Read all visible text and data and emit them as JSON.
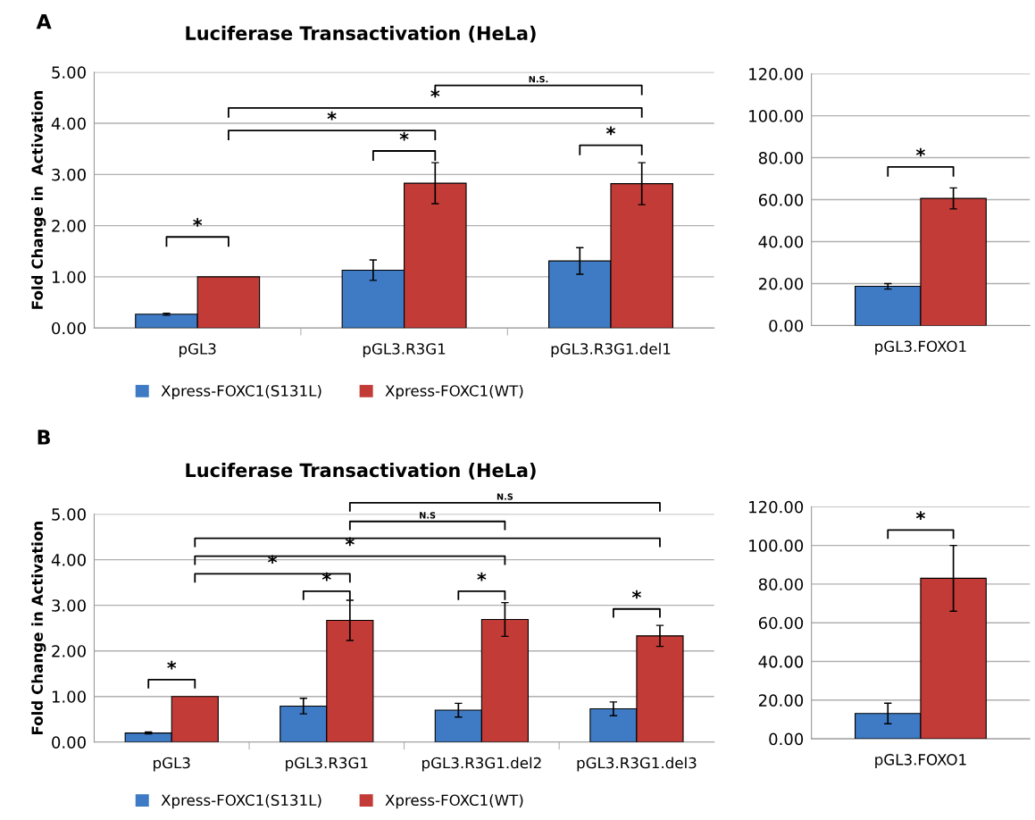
{
  "chart_data": [
    {
      "type": "bar",
      "title": "Luciferase Transactivation (HeLa)",
      "ylabel": "Fold Change in  Activation",
      "categories": [
        "pGL3",
        "pGL3.R3G1",
        "pGL3.R3G1.del1"
      ],
      "series": [
        {
          "name": "Xpress-FOXC1(S131L)",
          "color": "#3e7bc4",
          "values": [
            0.27,
            1.13,
            1.31
          ],
          "errors": [
            0.02,
            0.2,
            0.26
          ]
        },
        {
          "name": "Xpress-FOXC1(WT)",
          "color": "#c33b36",
          "values": [
            1.0,
            2.83,
            2.82
          ],
          "errors": [
            null,
            0.4,
            0.41
          ]
        }
      ],
      "ylim": [
        0,
        5
      ],
      "yticks": [
        {
          "value": 0,
          "label": "0.00"
        },
        {
          "value": 1,
          "label": "1.00"
        },
        {
          "value": 2,
          "label": "2.00"
        },
        {
          "value": 3,
          "label": "3.00"
        },
        {
          "value": 4,
          "label": "4.00"
        },
        {
          "value": 5,
          "label": "5.00"
        }
      ],
      "grid": "y",
      "legend": "bottom",
      "annotations": [
        "A",
        "*",
        "*",
        "*",
        "*",
        "*",
        "N.S."
      ]
    },
    {
      "type": "bar",
      "categories": [
        "pGL3.FOXO1"
      ],
      "series": [
        {
          "color": "#3e7bc4",
          "values": [
            18.7
          ],
          "errors": [
            1.3
          ]
        },
        {
          "color": "#c33b36",
          "values": [
            60.6
          ],
          "errors": [
            5
          ]
        }
      ],
      "ylim": [
        0,
        120
      ],
      "yticks": [
        {
          "value": 0,
          "label": "0.00"
        },
        {
          "value": 20,
          "label": "20.00"
        },
        {
          "value": 40,
          "label": "40.00"
        },
        {
          "value": 60,
          "label": "60.00"
        },
        {
          "value": 80,
          "label": "80.00"
        },
        {
          "value": 100,
          "label": "100.00"
        },
        {
          "value": 120,
          "label": "120.00"
        }
      ],
      "grid": "y",
      "annotations": [
        "*"
      ]
    },
    {
      "type": "bar",
      "title": "Luciferase Transactivation (HeLa)",
      "ylabel": "Fold Change in Activation",
      "categories": [
        "pGL3",
        "pGL3.R3G1",
        "pGL3.R3G1.del2",
        "pGL3.R3G1.del3"
      ],
      "series": [
        {
          "name": "Xpress-FOXC1(S131L)",
          "color": "#3e7bc4",
          "values": [
            0.2,
            0.79,
            0.7,
            0.73
          ],
          "errors": [
            0.02,
            0.17,
            0.15,
            0.15
          ]
        },
        {
          "name": "Xpress-FOXC1(WT)",
          "color": "#c33b36",
          "values": [
            1.0,
            2.67,
            2.69,
            2.33
          ],
          "errors": [
            null,
            0.44,
            0.37,
            0.23
          ]
        }
      ],
      "ylim": [
        0,
        5
      ],
      "yticks": [
        {
          "value": 0,
          "label": "0.00"
        },
        {
          "value": 1,
          "label": "1.00"
        },
        {
          "value": 2,
          "label": "2.00"
        },
        {
          "value": 3,
          "label": "3.00"
        },
        {
          "value": 4,
          "label": "4.00"
        },
        {
          "value": 5,
          "label": "5.00"
        }
      ],
      "grid": "y",
      "legend": "bottom",
      "annotations": [
        "B",
        "*",
        "*",
        "*",
        "*",
        "*",
        "*",
        "N.S",
        "N.S"
      ]
    },
    {
      "type": "bar",
      "categories": [
        "pGL3.FOXO1"
      ],
      "series": [
        {
          "color": "#3e7bc4",
          "values": [
            13.1
          ],
          "errors": [
            5.3
          ]
        },
        {
          "color": "#c33b36",
          "values": [
            83
          ],
          "errors": [
            17
          ]
        }
      ],
      "ylim": [
        0,
        120
      ],
      "yticks": [
        {
          "value": 0,
          "label": "0.00"
        },
        {
          "value": 20,
          "label": "20.00"
        },
        {
          "value": 40,
          "label": "40.00"
        },
        {
          "value": 60,
          "label": "60.00"
        },
        {
          "value": 80,
          "label": "80.00"
        },
        {
          "value": 100,
          "label": "100.00"
        },
        {
          "value": 120,
          "label": "120.00"
        }
      ],
      "grid": "y",
      "annotations": [
        "*"
      ]
    }
  ]
}
